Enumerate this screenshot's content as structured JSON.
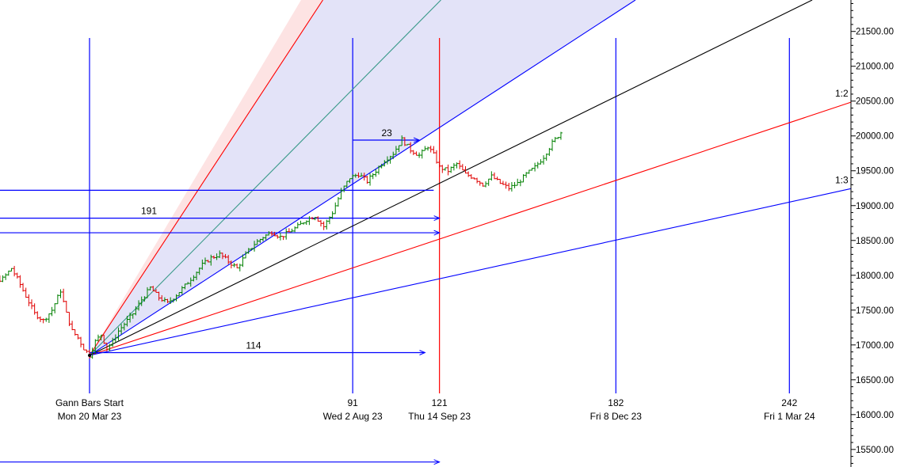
{
  "chart_data": {
    "type": "line",
    "subtype": "gann-fan-with-ohlc-bars",
    "y_axis": {
      "position": "right",
      "ylim": [
        15300,
        21950
      ],
      "ticks": [
        21500,
        21000,
        20500,
        20000,
        19500,
        19000,
        18500,
        18000,
        17500,
        17000,
        16500,
        16000,
        15500
      ],
      "tick_labels": [
        "21500.00",
        "21000.00",
        "20500.00",
        "20000.00",
        "19500.00",
        "19000.00",
        "18500.00",
        "18000.00",
        "17500.00",
        "17000.00",
        "16500.00",
        "16000.00",
        "15500.00"
      ]
    },
    "gann_start": {
      "date": "Mon 20 Mar 23",
      "price": 16850
    },
    "vertical_markers": [
      {
        "name": "gann-start",
        "number": "Gann Bars Start",
        "date": "Mon 20 Mar 23",
        "bar": 0,
        "color": "#0000ff"
      },
      {
        "name": "marker-91",
        "number": "91",
        "date": "Wed 2 Aug 23",
        "bar": 91,
        "color": "#0000ff"
      },
      {
        "name": "marker-121",
        "number": "121",
        "date": "Thu 14 Sep 23",
        "bar": 121,
        "color": "#ff0000"
      },
      {
        "name": "marker-182",
        "number": "182",
        "date": "Fri 8 Dec 23",
        "bar": 182,
        "color": "#0000ff"
      },
      {
        "name": "marker-242",
        "number": "242",
        "date": "Fri 1 Mar 24",
        "bar": 242,
        "color": "#0000ff"
      }
    ],
    "fan_lines": [
      {
        "name": "fan-red-steep",
        "color": "#ff0000",
        "price_at_bar_121": 24500,
        "label": ""
      },
      {
        "name": "fan-teal",
        "color": "#3a9a8a",
        "price_at_bar_121": 21930,
        "label": ""
      },
      {
        "name": "fan-blue-upper",
        "color": "#0000ff",
        "price_at_bar_121": 20120,
        "label": ""
      },
      {
        "name": "fan-black",
        "color": "#000000",
        "price_at_bar_121": 19320,
        "label": ""
      },
      {
        "name": "fan-red-1to2",
        "color": "#ff0000",
        "price_at_bar_121": 18520,
        "label": "1:2"
      },
      {
        "name": "fan-blue-1to3",
        "color": "#0000ff",
        "price_at_bar_121": 17950,
        "label": "1:3"
      }
    ],
    "horizontal_projections": [
      {
        "name": "projection-23",
        "price": 19940,
        "from_bar": 91,
        "to_bar": 114,
        "label": "23",
        "arrow": true
      },
      {
        "name": "projection-low",
        "price": 19220,
        "from_bar": -50,
        "to_bar": 119,
        "label": "",
        "arrow": false
      },
      {
        "name": "projection-191",
        "price": 18820,
        "from_bar": -50,
        "to_bar": 121,
        "label": "191",
        "arrow": true
      },
      {
        "name": "projection-mid",
        "price": 18610,
        "from_bar": -50,
        "to_bar": 121,
        "label": "",
        "arrow": true
      },
      {
        "name": "projection-114",
        "price": 16890,
        "from_bar": 0,
        "to_bar": 116,
        "label": "114",
        "arrow": true
      },
      {
        "name": "projection-bottom",
        "price": 15320,
        "from_bar": -50,
        "to_bar": 121,
        "label": "",
        "arrow": true
      }
    ],
    "price_path": [
      [
        -45,
        17800
      ],
      [
        -40,
        17850
      ],
      [
        -35,
        17900
      ],
      [
        -30,
        17950
      ],
      [
        -27,
        18100
      ],
      [
        -25,
        17950
      ],
      [
        -22,
        17700
      ],
      [
        -19,
        17450
      ],
      [
        -16,
        17350
      ],
      [
        -13,
        17500
      ],
      [
        -10,
        17780
      ],
      [
        -8,
        17450
      ],
      [
        -6,
        17200
      ],
      [
        -4,
        17100
      ],
      [
        -2,
        16950
      ],
      [
        0,
        16850
      ],
      [
        2,
        17050
      ],
      [
        4,
        17150
      ],
      [
        6,
        16950
      ],
      [
        8,
        17050
      ],
      [
        10,
        17200
      ],
      [
        12,
        17300
      ],
      [
        15,
        17450
      ],
      [
        18,
        17650
      ],
      [
        21,
        17820
      ],
      [
        24,
        17680
      ],
      [
        27,
        17600
      ],
      [
        30,
        17720
      ],
      [
        33,
        17850
      ],
      [
        36,
        18000
      ],
      [
        39,
        18150
      ],
      [
        42,
        18250
      ],
      [
        45,
        18300
      ],
      [
        48,
        18200
      ],
      [
        51,
        18100
      ],
      [
        54,
        18300
      ],
      [
        57,
        18450
      ],
      [
        60,
        18550
      ],
      [
        63,
        18620
      ],
      [
        66,
        18550
      ],
      [
        69,
        18620
      ],
      [
        72,
        18700
      ],
      [
        75,
        18800
      ],
      [
        78,
        18850
      ],
      [
        81,
        18700
      ],
      [
        84,
        18900
      ],
      [
        87,
        19200
      ],
      [
        90,
        19400
      ],
      [
        93,
        19450
      ],
      [
        96,
        19350
      ],
      [
        99,
        19500
      ],
      [
        102,
        19650
      ],
      [
        105,
        19750
      ],
      [
        108,
        19950
      ],
      [
        111,
        19800
      ],
      [
        114,
        19720
      ],
      [
        117,
        19850
      ],
      [
        119,
        19730
      ],
      [
        121,
        19550
      ],
      [
        124,
        19500
      ],
      [
        127,
        19600
      ],
      [
        130,
        19450
      ],
      [
        133,
        19400
      ],
      [
        136,
        19300
      ],
      [
        139,
        19420
      ],
      [
        142,
        19320
      ],
      [
        145,
        19250
      ],
      [
        148,
        19320
      ],
      [
        151,
        19450
      ],
      [
        154,
        19550
      ],
      [
        157,
        19700
      ],
      [
        160,
        19900
      ],
      [
        163,
        20050
      ]
    ]
  }
}
